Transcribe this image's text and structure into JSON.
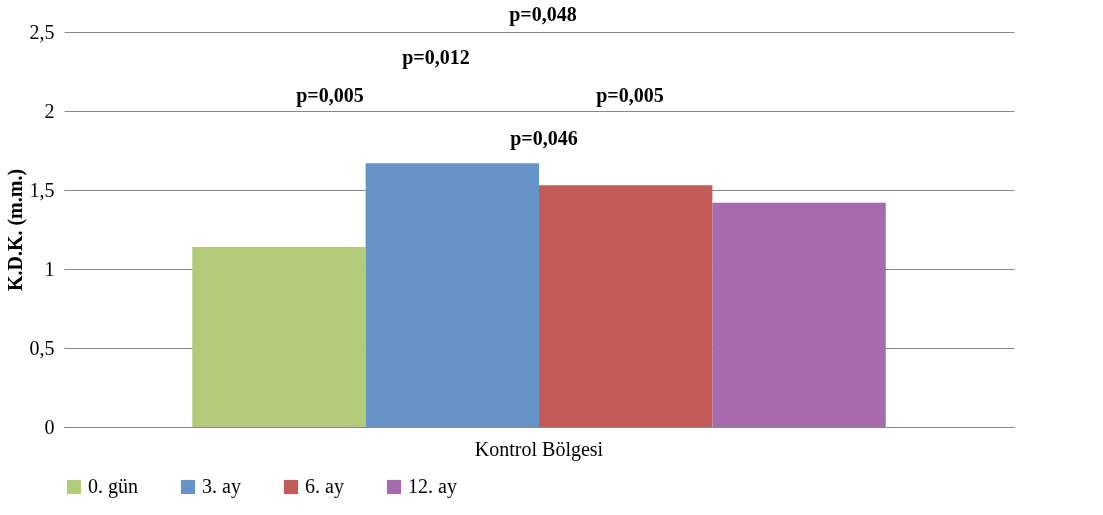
{
  "chart_data": {
    "type": "bar",
    "categories": [
      "Kontrol Bölgesi"
    ],
    "ylabel": "K.D.K. (m.m.)",
    "series": [
      {
        "name": "0. gün",
        "color": "#b1cb7b",
        "values": [
          1.14
        ]
      },
      {
        "name": "3. ay",
        "color": "#6794c8",
        "values": [
          1.67
        ]
      },
      {
        "name": "6. ay",
        "color": "#c35b58",
        "values": [
          1.53
        ]
      },
      {
        "name": "12. ay",
        "color": "#a56bad",
        "values": [
          1.42
        ]
      }
    ],
    "ylim": [
      0,
      2.5
    ],
    "yticks": [
      0,
      {
        "value": 0.5,
        "label": "0,5"
      },
      1,
      {
        "value": 1.5,
        "label": "1,5"
      },
      2,
      {
        "value": 2.5,
        "label": "2,5"
      }
    ],
    "grid": "y",
    "legend": "bottom",
    "annotations": [
      "p=0,048",
      "p=0,012",
      "p=0,005",
      "p=0,005",
      "p=0,046"
    ]
  }
}
